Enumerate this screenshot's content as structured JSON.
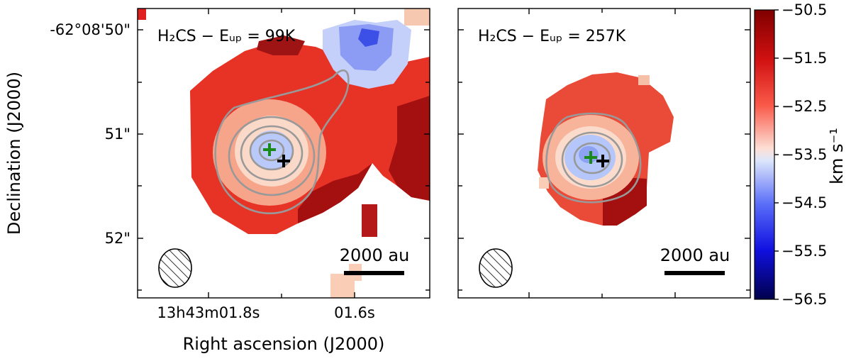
{
  "chart_data": {
    "type": "heatmap",
    "ylabel": "Declination (J2000)",
    "xlabel": "Right ascension (J2000)",
    "y_tick_labels": [
      "-62°08'50\"",
      "51\"",
      "52\""
    ],
    "x_tick_labels": [
      "13h43m01.8s",
      "01.6s"
    ],
    "scale_bar_label": "2000 au",
    "colorbar": {
      "label": "km s⁻¹",
      "range": [
        -56.5,
        -50.5
      ],
      "tick_labels": [
        "−50.5",
        "−51.5",
        "−52.5",
        "−53.5",
        "−54.5",
        "−55.5",
        "−56.5"
      ],
      "tick_values": [
        -50.5,
        -51.5,
        -52.5,
        -53.5,
        -54.5,
        -55.5,
        -56.5
      ],
      "colormap": "seismic_r",
      "colors": {
        "low": "#00004c",
        "mid": "#fff2ec",
        "high": "#800000"
      }
    },
    "panels": [
      {
        "molecule": "H₂CS",
        "energy": "Eᵤₚ = 99K",
        "label": "H₂CS  −  Eᵤₚ  =  99K"
      },
      {
        "molecule": "H₂CS",
        "energy": "Eᵤₚ = 257K",
        "label": "H₂CS  −  Eᵤₚ  =  257K"
      }
    ],
    "markers": {
      "green": "#1a8a1a",
      "black": "#000000",
      "contour": "#999999"
    }
  }
}
